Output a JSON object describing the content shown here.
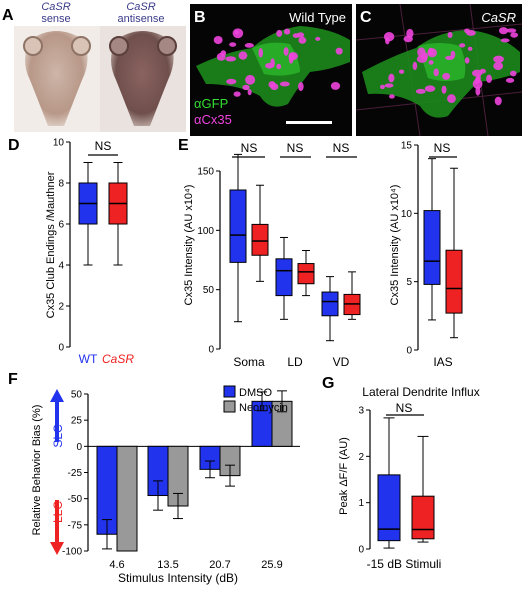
{
  "panels": {
    "A": {
      "letter": "A",
      "left_caption": [
        "CaSR",
        "sense"
      ],
      "right_caption": [
        "CaSR",
        "antisense"
      ]
    },
    "B": {
      "letter": "B",
      "label": "Wild Type",
      "legend": [
        "αGFP",
        "αCx35"
      ]
    },
    "C": {
      "letter": "C",
      "label": "CaSR"
    },
    "D": {
      "letter": "D",
      "ylabel": "Cx35 Club Endings /Mauthner",
      "significance": "NS"
    },
    "E": {
      "letter": "E",
      "ylabel_left": "Cx35 Intensity (AU x10⁴)",
      "ylabel_right": "Cx35 Intensity (AU x10⁴)",
      "significance": "NS"
    },
    "F": {
      "letter": "F",
      "ylabel": "Relative Behavior Bias (%)",
      "xlabel": "Stimulus Intensity (dB)",
      "slc": "SLC",
      "llc": "LLC"
    },
    "G": {
      "letter": "G",
      "title": "Lateral Dendrite Influx",
      "ylabel": "Peak ΔF/F (AU)",
      "xlabel": "-15 dB Stimuli",
      "significance": "NS"
    }
  },
  "colors": {
    "wt": "#2233ee",
    "mutant": "#ee2222",
    "dmso": "#2233ee",
    "neomycin": "#999999",
    "gfp": "#33dd33",
    "cx35": "#ee44dd"
  },
  "chart_data": [
    {
      "panel": "D",
      "type": "box",
      "categories": [
        "WT",
        "CaSR"
      ],
      "ylim": [
        0,
        10
      ],
      "yticks": [
        0,
        2,
        4,
        6,
        8,
        10
      ],
      "boxes": [
        {
          "name": "WT",
          "min": 4,
          "q1": 6,
          "median": 7,
          "q3": 8,
          "max": 9
        },
        {
          "name": "CaSR",
          "min": 4,
          "q1": 6,
          "median": 7,
          "q3": 8,
          "max": 9
        }
      ]
    },
    {
      "panel": "E-left",
      "type": "box",
      "categories": [
        "Soma",
        "LD",
        "VD"
      ],
      "ylim": [
        0,
        150
      ],
      "yticks": [
        0,
        50,
        100,
        150
      ],
      "groups": [
        {
          "category": "Soma",
          "wt": {
            "min": 23,
            "q1": 73,
            "median": 96,
            "q3": 134,
            "max": 164
          },
          "mutant": {
            "min": 57,
            "q1": 79,
            "median": 91,
            "q3": 105,
            "max": 138
          }
        },
        {
          "category": "LD",
          "wt": {
            "min": 25,
            "q1": 45,
            "median": 66,
            "q3": 76,
            "max": 94
          },
          "mutant": {
            "min": 45,
            "q1": 55,
            "median": 65,
            "q3": 72,
            "max": 83
          }
        },
        {
          "category": "VD",
          "wt": {
            "min": 7,
            "q1": 28,
            "median": 40,
            "q3": 48,
            "max": 61
          },
          "mutant": {
            "min": 25,
            "q1": 29,
            "median": 38,
            "q3": 46,
            "max": 65
          }
        }
      ]
    },
    {
      "panel": "E-right",
      "type": "box",
      "categories": [
        "IAS"
      ],
      "ylim": [
        0,
        15
      ],
      "yticks": [
        0,
        5,
        10,
        15
      ],
      "groups": [
        {
          "category": "IAS",
          "wt": {
            "min": 2.2,
            "q1": 4.8,
            "median": 6.5,
            "q3": 10.2,
            "max": 14
          },
          "mutant": {
            "min": 0.9,
            "q1": 2.7,
            "median": 4.5,
            "q3": 7.3,
            "max": 13.3
          }
        }
      ]
    },
    {
      "panel": "F",
      "type": "bar",
      "categories": [
        "4.6",
        "13.5",
        "20.7",
        "25.9"
      ],
      "ylim": [
        -100,
        50
      ],
      "yticks": [
        -100,
        -75,
        -50,
        -25,
        0,
        25,
        50
      ],
      "series": [
        {
          "name": "DMSO",
          "values": [
            -84,
            -47,
            -22,
            43
          ],
          "errors": [
            14,
            14,
            8,
            9
          ]
        },
        {
          "name": "Neomycin",
          "values": [
            -100,
            -57,
            -28,
            43
          ],
          "errors": [
            0,
            12,
            10,
            10
          ]
        }
      ]
    },
    {
      "panel": "G",
      "type": "box",
      "categories": [
        "-15 dB Stimuli"
      ],
      "ylim": [
        0,
        3
      ],
      "yticks": [
        0,
        1,
        2,
        3
      ],
      "boxes": [
        {
          "name": "WT",
          "min": 0.02,
          "q1": 0.18,
          "median": 0.43,
          "q3": 1.6,
          "max": 2.83
        },
        {
          "name": "CaSR",
          "min": 0.15,
          "q1": 0.22,
          "median": 0.42,
          "q3": 1.14,
          "max": 2.43
        }
      ]
    }
  ]
}
